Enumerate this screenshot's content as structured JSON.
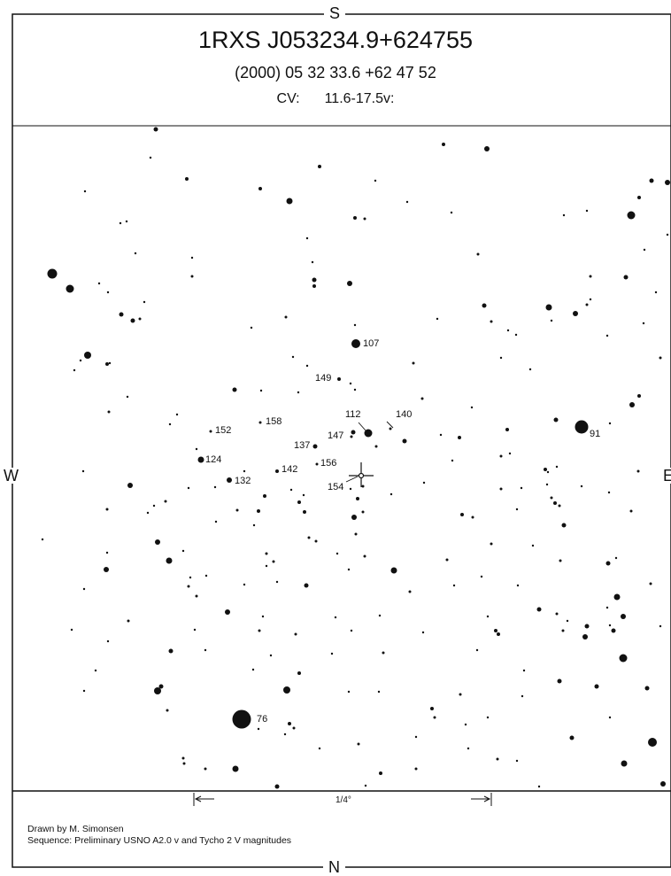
{
  "header": {
    "title": "1RXS J053234.9+624755",
    "coords": "(2000) 05 32 33.6  +62 47 52",
    "type_label": "CV:",
    "range": "11.6-17.5v:"
  },
  "directions": {
    "top": "S",
    "bottom": "N",
    "left": "W",
    "right": "E"
  },
  "scale": {
    "label": "1/4°"
  },
  "credits": {
    "drawn_by": "Drawn by M. Simonsen",
    "sequence": "Sequence: Preliminary USNO A2.0 v and Tycho 2 V magnitudes"
  },
  "comparison_labels": [
    "107",
    "149",
    "112",
    "140",
    "147",
    "137",
    "158",
    "152",
    "124",
    "132",
    "142",
    "156",
    "154",
    "91",
    "76"
  ],
  "colors": {
    "ink": "#111111",
    "background": "#ffffff"
  }
}
